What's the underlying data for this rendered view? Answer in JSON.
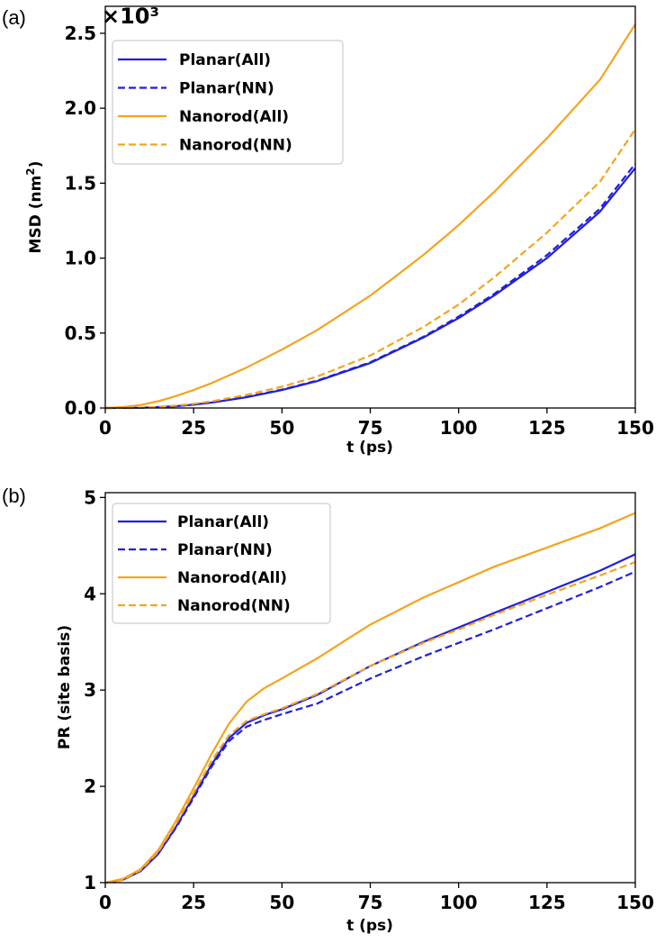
{
  "chart_data": [
    {
      "panel_label": "(a)",
      "type": "line",
      "xlabel": "t (ps)",
      "ylabel": "MSD (nm",
      "ylabel_sup": "2",
      "ylabel_end": ")",
      "multiplier": "×10³",
      "xlim": [
        0,
        150
      ],
      "ylim": [
        0,
        2.68
      ],
      "xticks": [
        "0",
        "25",
        "50",
        "75",
        "100",
        "125",
        "150"
      ],
      "yticks": [
        "0.0",
        "0.5",
        "1.0",
        "1.5",
        "2.0",
        "2.5"
      ],
      "legend_position": "top-left",
      "x": [
        0,
        5,
        10,
        15,
        20,
        25,
        30,
        40,
        50,
        60,
        75,
        90,
        100,
        110,
        125,
        140,
        150
      ],
      "series": [
        {
          "name": "Planar(All)",
          "color": "#1f1fe0",
          "dash": "solid",
          "values": [
            0,
            0.0005,
            0.002,
            0.006,
            0.012,
            0.022,
            0.036,
            0.072,
            0.12,
            0.18,
            0.3,
            0.47,
            0.6,
            0.75,
            1.0,
            1.31,
            1.6
          ]
        },
        {
          "name": "Planar(NN)",
          "color": "#1f1fe0",
          "dash": "dashed",
          "values": [
            0,
            0.0005,
            0.002,
            0.006,
            0.013,
            0.023,
            0.037,
            0.074,
            0.123,
            0.183,
            0.305,
            0.475,
            0.61,
            0.76,
            1.02,
            1.33,
            1.63
          ]
        },
        {
          "name": "Nanorod(All)",
          "color": "#f5a31f",
          "dash": "solid",
          "values": [
            0,
            0.006,
            0.02,
            0.045,
            0.08,
            0.12,
            0.165,
            0.27,
            0.39,
            0.52,
            0.75,
            1.02,
            1.22,
            1.44,
            1.8,
            2.19,
            2.56
          ]
        },
        {
          "name": "Nanorod(NN)",
          "color": "#f5a31f",
          "dash": "dashed",
          "values": [
            0,
            0.001,
            0.003,
            0.008,
            0.016,
            0.028,
            0.044,
            0.088,
            0.142,
            0.21,
            0.35,
            0.54,
            0.69,
            0.87,
            1.17,
            1.51,
            1.86
          ]
        }
      ]
    },
    {
      "panel_label": "(b)",
      "type": "line",
      "xlabel": "t (ps)",
      "ylabel": "PR (site basis)",
      "xlim": [
        0,
        150
      ],
      "ylim": [
        1,
        5.05
      ],
      "xticks": [
        "0",
        "25",
        "50",
        "75",
        "100",
        "125",
        "150"
      ],
      "yticks": [
        "1",
        "2",
        "3",
        "4",
        "5"
      ],
      "legend_position": "top-left",
      "x": [
        0,
        5,
        10,
        15,
        20,
        25,
        30,
        35,
        40,
        45,
        50,
        60,
        75,
        90,
        100,
        110,
        125,
        140,
        150
      ],
      "series": [
        {
          "name": "Planar(All)",
          "color": "#1f1fe0",
          "dash": "solid",
          "values": [
            1,
            1.03,
            1.12,
            1.3,
            1.58,
            1.9,
            2.22,
            2.5,
            2.66,
            2.74,
            2.8,
            2.95,
            3.25,
            3.5,
            3.65,
            3.8,
            4.02,
            4.24,
            4.41
          ]
        },
        {
          "name": "Planar(NN)",
          "color": "#1f1fe0",
          "dash": "dashed",
          "values": [
            1,
            1.03,
            1.12,
            1.3,
            1.57,
            1.88,
            2.2,
            2.47,
            2.62,
            2.69,
            2.75,
            2.86,
            3.12,
            3.35,
            3.49,
            3.63,
            3.85,
            4.07,
            4.23
          ]
        },
        {
          "name": "Nanorod(All)",
          "color": "#f5a31f",
          "dash": "solid",
          "values": [
            1,
            1.04,
            1.14,
            1.34,
            1.64,
            1.98,
            2.33,
            2.65,
            2.88,
            3.02,
            3.12,
            3.33,
            3.68,
            3.96,
            4.12,
            4.28,
            4.48,
            4.68,
            4.84
          ]
        },
        {
          "name": "Nanorod(NN)",
          "color": "#f5a31f",
          "dash": "dashed",
          "values": [
            1,
            1.03,
            1.13,
            1.32,
            1.61,
            1.93,
            2.26,
            2.53,
            2.68,
            2.75,
            2.81,
            2.96,
            3.25,
            3.49,
            3.63,
            3.78,
            3.99,
            4.19,
            4.33
          ]
        }
      ]
    }
  ]
}
